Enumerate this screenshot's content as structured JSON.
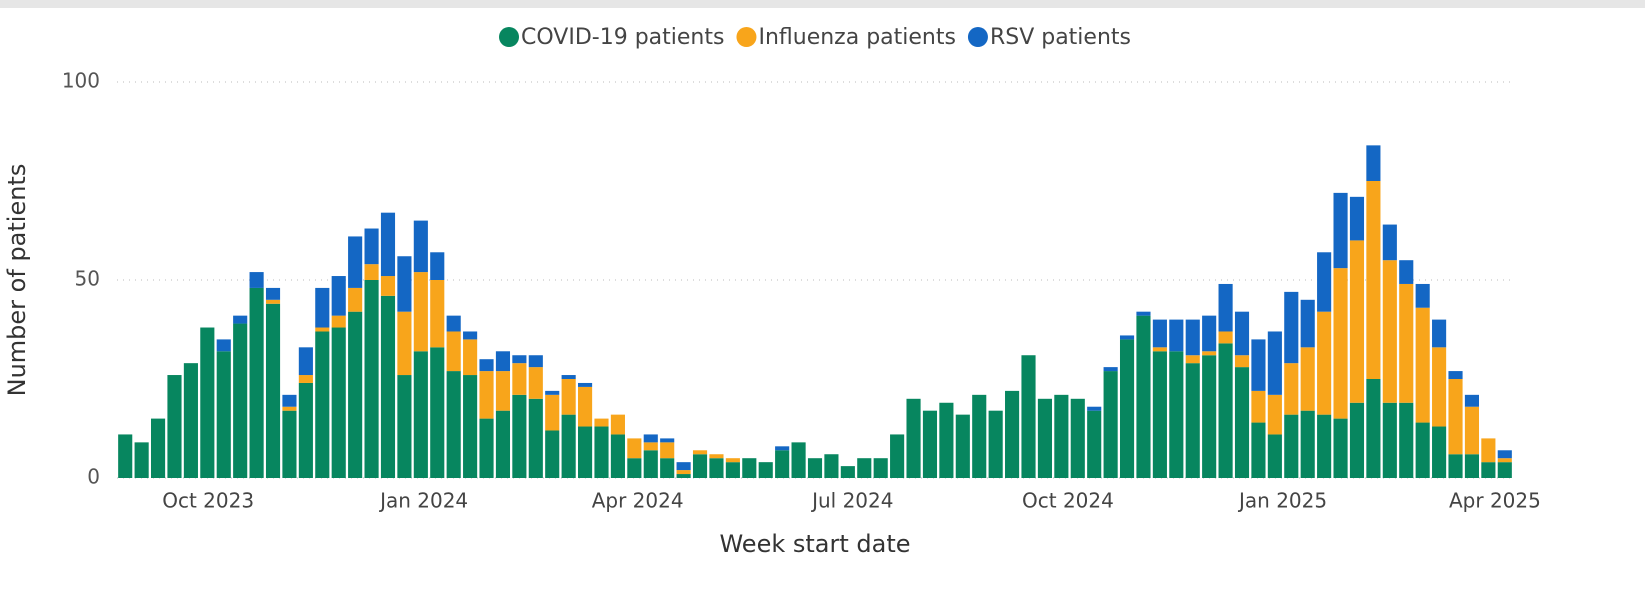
{
  "chart_data": {
    "type": "stacked_bar",
    "x_label": "Week start date",
    "y_label": "Number of patients",
    "categories": [
      null,
      null,
      null,
      null,
      null,
      null,
      null,
      null,
      null,
      null,
      null,
      null,
      null,
      null,
      null,
      null,
      null,
      null,
      null,
      null,
      null,
      null,
      null,
      null,
      null,
      null,
      null,
      null,
      null,
      null,
      null,
      null,
      null,
      null,
      null,
      null,
      null,
      null,
      null,
      null,
      null,
      null,
      null,
      null,
      null,
      null,
      null,
      null,
      null,
      null,
      null,
      null,
      null,
      null,
      null,
      null,
      null,
      null,
      null,
      null,
      null,
      null,
      null,
      null,
      null,
      null,
      null,
      null,
      null,
      null,
      null,
      null,
      null,
      null,
      null,
      null,
      null,
      null,
      null,
      null,
      null,
      null,
      null,
      null,
      null
    ],
    "xlim": [
      -0.5,
      84.5
    ],
    "xticks": [
      {
        "value": 5.05,
        "label": "Oct 2023"
      },
      {
        "value": 18.2,
        "label": "Jan 2024"
      },
      {
        "value": 31.2,
        "label": "Apr 2024"
      },
      {
        "value": 44.3,
        "label": "Jul 2024"
      },
      {
        "value": 57.4,
        "label": "Oct 2024"
      },
      {
        "value": 70.5,
        "label": "Jan 2025"
      },
      {
        "value": 83.4,
        "label": "Apr 2025"
      }
    ],
    "ylim": [
      0,
      100
    ],
    "yticks": [
      0,
      50,
      100
    ],
    "grid": true,
    "legend": "top",
    "series": [
      {
        "name": "COVID-19 patients",
        "color": "#07865f",
        "values": [
          11,
          9,
          15,
          26,
          29,
          38,
          32,
          39,
          48,
          44,
          17,
          24,
          37,
          38,
          42,
          50,
          46,
          26,
          32,
          33,
          27,
          26,
          15,
          17,
          21,
          20,
          12,
          16,
          13,
          13,
          11,
          5,
          7,
          5,
          1,
          6,
          5,
          4,
          5,
          4,
          7,
          9,
          5,
          6,
          3,
          5,
          5,
          11,
          20,
          17,
          19,
          16,
          21,
          17,
          22,
          31,
          20,
          21,
          20,
          17,
          27,
          35,
          41,
          32,
          32,
          29,
          31,
          34,
          28,
          14,
          11,
          16,
          17,
          16,
          15,
          19,
          25,
          19,
          19,
          14,
          13,
          6,
          6,
          4,
          4
        ]
      },
      {
        "name": "Influenza patients",
        "color": "#f8a51b",
        "values": [
          0,
          0,
          0,
          0,
          0,
          0,
          0,
          0,
          0,
          1,
          1,
          2,
          1,
          3,
          6,
          4,
          5,
          16,
          20,
          17,
          10,
          9,
          12,
          10,
          8,
          8,
          9,
          9,
          10,
          2,
          5,
          5,
          2,
          4,
          1,
          1,
          1,
          1,
          0,
          0,
          0,
          0,
          0,
          0,
          0,
          0,
          0,
          0,
          0,
          0,
          0,
          0,
          0,
          0,
          0,
          0,
          0,
          0,
          0,
          0,
          0,
          0,
          0,
          1,
          0,
          2,
          1,
          3,
          3,
          8,
          10,
          13,
          16,
          26,
          38,
          41,
          50,
          36,
          30,
          29,
          20,
          19,
          12,
          6,
          1
        ]
      },
      {
        "name": "RSV patients",
        "color": "#1467c4",
        "values": [
          0,
          0,
          0,
          0,
          0,
          0,
          3,
          2,
          4,
          3,
          3,
          7,
          10,
          10,
          13,
          9,
          16,
          14,
          13,
          7,
          4,
          2,
          3,
          5,
          2,
          3,
          1,
          1,
          1,
          0,
          0,
          0,
          2,
          1,
          2,
          0,
          0,
          0,
          0,
          0,
          1,
          0,
          0,
          0,
          0,
          0,
          0,
          0,
          0,
          0,
          0,
          0,
          0,
          0,
          0,
          0,
          0,
          0,
          0,
          1,
          1,
          1,
          1,
          7,
          8,
          9,
          9,
          12,
          11,
          13,
          16,
          18,
          12,
          15,
          19,
          11,
          9,
          9,
          6,
          6,
          7,
          2,
          3,
          0,
          2
        ]
      }
    ]
  }
}
